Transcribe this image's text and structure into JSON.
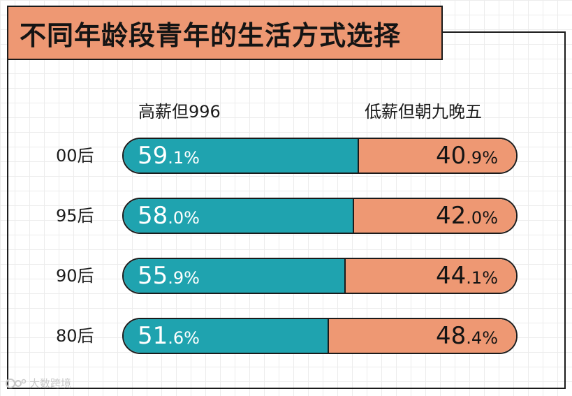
{
  "title": "不同年龄段青年的生活方式选择",
  "watermark": "大数跨境",
  "chart_data": {
    "type": "bar",
    "stacked": true,
    "orientation": "horizontal",
    "categories": [
      "00后",
      "95后",
      "90后",
      "80后"
    ],
    "series": [
      {
        "name": "高薪但996",
        "color": "#1fa3af",
        "values": [
          59.1,
          58.0,
          55.9,
          51.6
        ],
        "labels": [
          {
            "int": "59",
            "dec": ".1%"
          },
          {
            "int": "58",
            "dec": ".0%"
          },
          {
            "int": "55",
            "dec": ".9%"
          },
          {
            "int": "51",
            "dec": ".6%"
          }
        ]
      },
      {
        "name": "低薪但朝九晚五",
        "color": "#ee9873",
        "values": [
          40.9,
          42.0,
          44.1,
          48.4
        ],
        "labels": [
          {
            "int": "40",
            "dec": ".9%"
          },
          {
            "int": "42",
            "dec": ".0%"
          },
          {
            "int": "44",
            "dec": ".1%"
          },
          {
            "int": "48",
            "dec": ".4%"
          }
        ]
      }
    ],
    "xlim": [
      0,
      100
    ],
    "legend": "top"
  }
}
